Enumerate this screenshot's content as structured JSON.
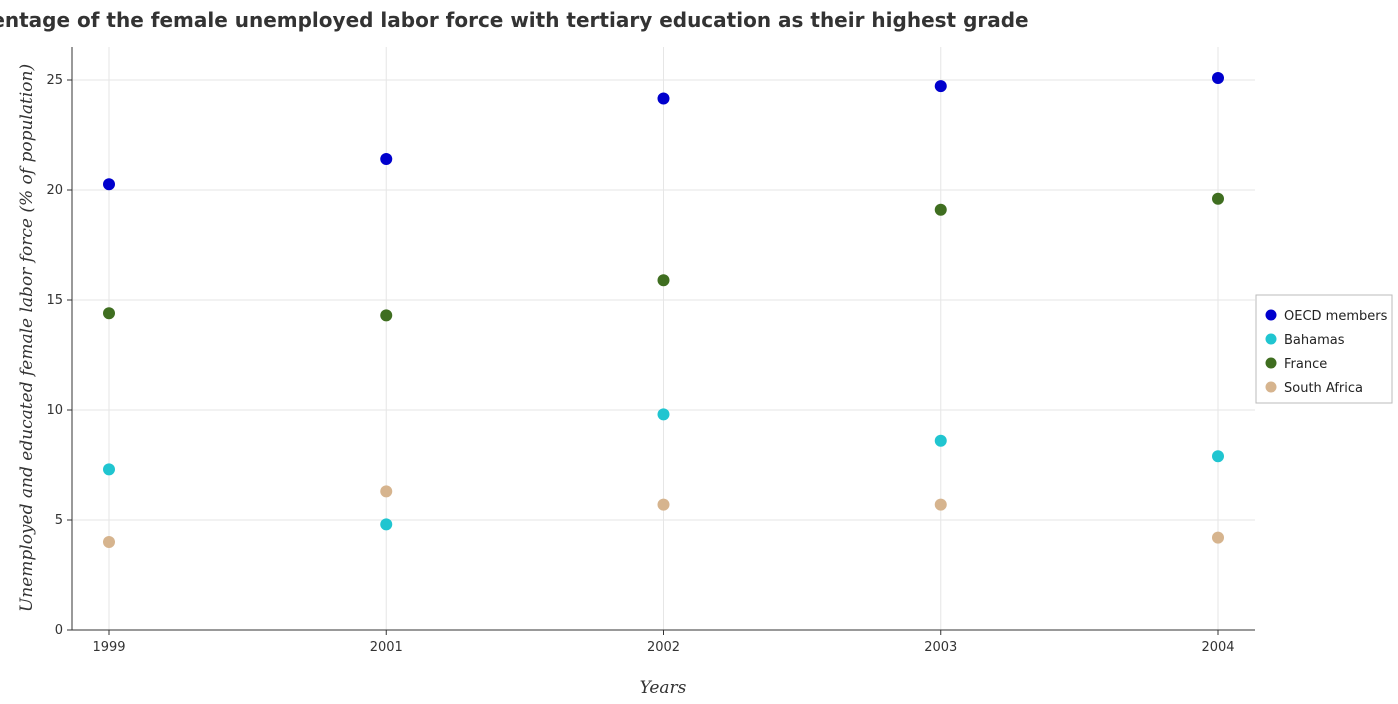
{
  "chart_data": {
    "type": "scatter",
    "title": "Percentage of the female unemployed labor force with tertiary education as their highest grade",
    "xlabel": "Years",
    "ylabel": "Unemployed and educated female labor force (% of population)",
    "categories": [
      "1999",
      "2001",
      "2002",
      "2003",
      "2004"
    ],
    "ylim": [
      0,
      26.5
    ],
    "yticks": [
      0,
      5,
      10,
      15,
      20,
      25
    ],
    "grid": true,
    "legend_position": "right",
    "series": [
      {
        "name": "OECD members",
        "color": "#0000cd",
        "values": [
          20.26,
          21.41,
          24.16,
          24.72,
          25.09
        ]
      },
      {
        "name": "Bahamas",
        "color": "#20c5d0",
        "values": [
          7.3,
          4.8,
          9.8,
          8.6,
          7.9
        ]
      },
      {
        "name": "France",
        "color": "#3f6e20",
        "values": [
          14.4,
          14.3,
          15.9,
          19.1,
          19.6
        ]
      },
      {
        "name": "South Africa",
        "color": "#d6b48e",
        "values": [
          4.0,
          6.3,
          5.7,
          5.7,
          4.2
        ]
      }
    ]
  }
}
